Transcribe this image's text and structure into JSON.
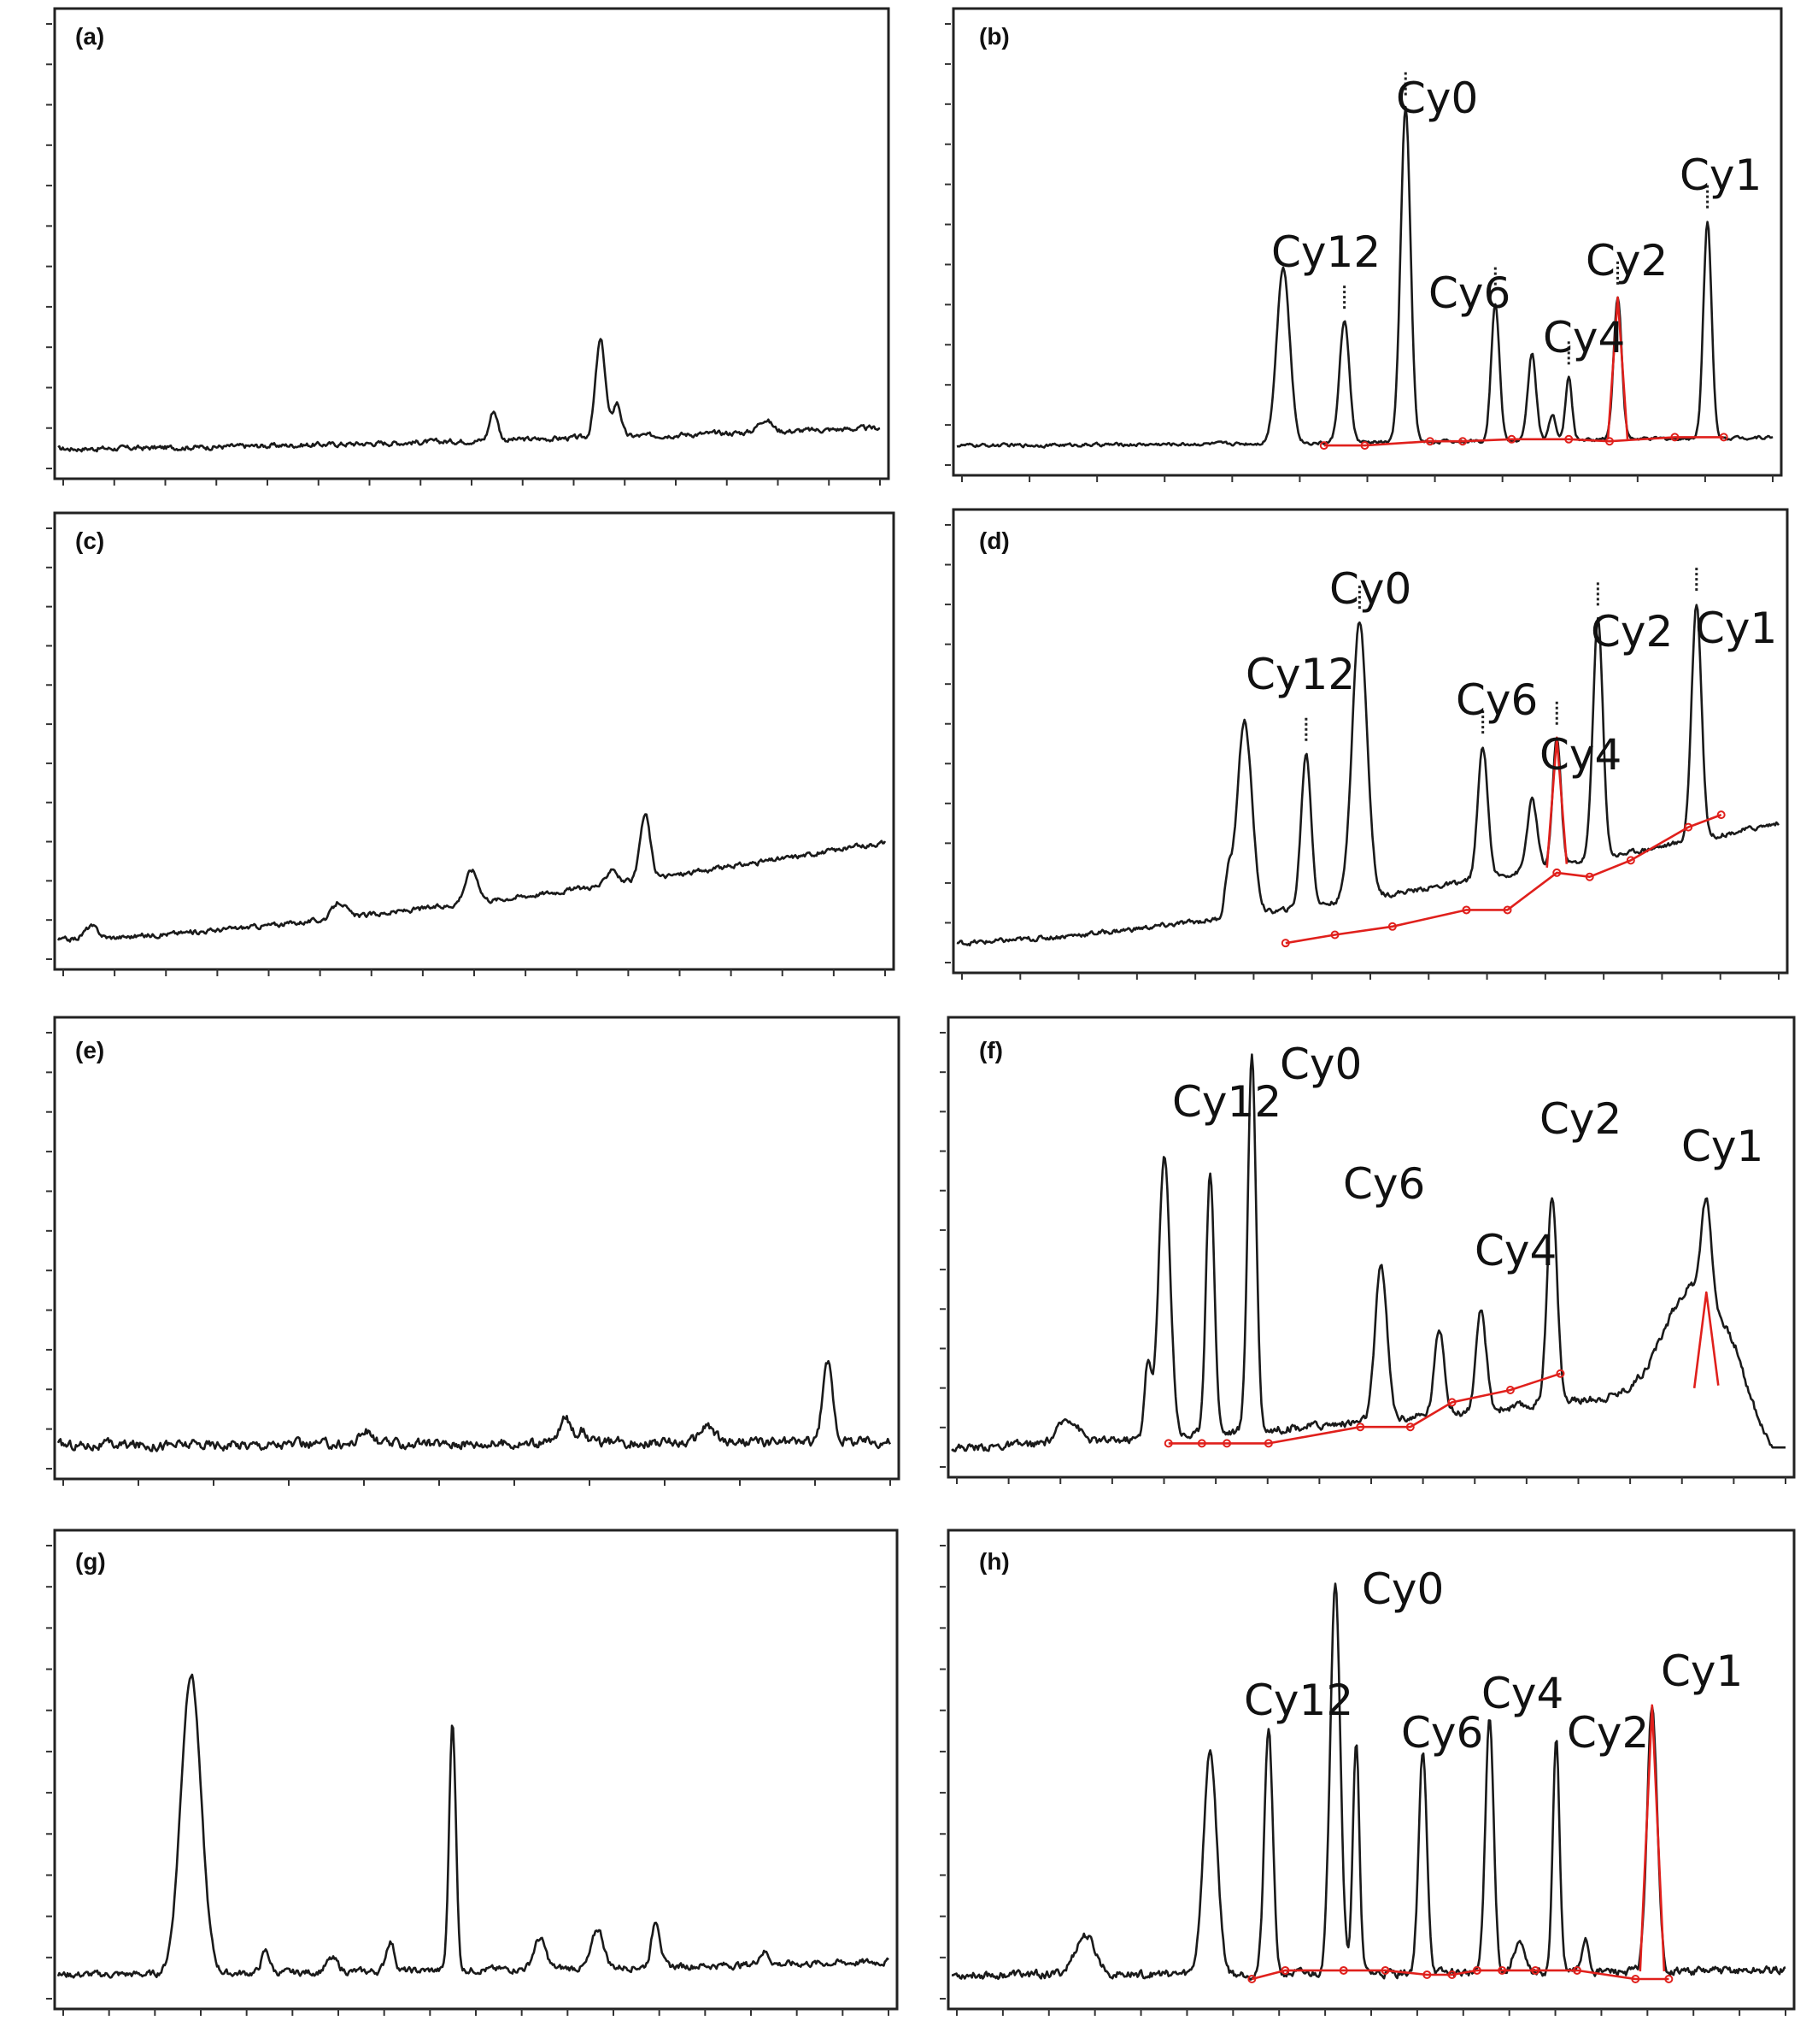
{
  "colors": {
    "trace": "#1a1a1a",
    "integration": "#e0201c",
    "frame": "#222222"
  },
  "chart_data": [
    {
      "panel": "(a)",
      "type": "line",
      "xlim": [
        0,
        100
      ],
      "ylim": [
        0,
        100
      ],
      "x_ticks": 16,
      "y_ticks": 12,
      "grid": false,
      "peaks": [
        {
          "x": 53,
          "h": 7,
          "w": 0.5
        },
        {
          "x": 66,
          "h": 23,
          "w": 0.6
        },
        {
          "x": 68,
          "h": 8,
          "w": 0.5
        },
        {
          "x": 86,
          "h": 3,
          "w": 0.8
        }
      ],
      "baseline_start": 1,
      "baseline_end": 6,
      "noise": 0.6,
      "labels": []
    },
    {
      "panel": "(b)",
      "type": "line",
      "xlim": [
        0,
        100
      ],
      "ylim": [
        0,
        100
      ],
      "x_ticks": 12,
      "y_ticks": 12,
      "grid": false,
      "peaks": [
        {
          "x": 40,
          "h": 42,
          "w": 0.8
        },
        {
          "x": 47.5,
          "h": 29,
          "w": 0.6,
          "label": "Cy12"
        },
        {
          "x": 55,
          "h": 80,
          "w": 0.6,
          "label": "Cy0"
        },
        {
          "x": 66,
          "h": 33,
          "w": 0.5,
          "label": "Cy6"
        },
        {
          "x": 70.5,
          "h": 21,
          "w": 0.5
        },
        {
          "x": 73,
          "h": 6,
          "w": 0.4
        },
        {
          "x": 75,
          "h": 15,
          "w": 0.4,
          "label": "Cy4"
        },
        {
          "x": 81,
          "h": 34,
          "w": 0.5,
          "label": "Cy2",
          "red": true
        },
        {
          "x": 92,
          "h": 52,
          "w": 0.5,
          "label": "Cy1"
        }
      ],
      "baseline_start": 1,
      "baseline_end": 3,
      "noise": 0.4,
      "red_baseline": [
        [
          45,
          1
        ],
        [
          50,
          1
        ],
        [
          58,
          2
        ],
        [
          62,
          2
        ],
        [
          68,
          2.5
        ],
        [
          75,
          2.5
        ],
        [
          80,
          2
        ],
        [
          88,
          3
        ],
        [
          94,
          3
        ]
      ]
    },
    {
      "panel": "(c)",
      "type": "line",
      "xlim": [
        0,
        100
      ],
      "ylim": [
        0,
        100
      ],
      "x_ticks": 16,
      "y_ticks": 12,
      "grid": false,
      "peaks": [
        {
          "x": 4,
          "h": 3,
          "w": 0.8
        },
        {
          "x": 34,
          "h": 4,
          "w": 0.8
        },
        {
          "x": 50,
          "h": 8,
          "w": 0.8
        },
        {
          "x": 67,
          "h": 4,
          "w": 0.6
        },
        {
          "x": 71,
          "h": 16,
          "w": 0.6
        }
      ],
      "baseline_start": 1,
      "baseline_end": 25,
      "noise": 0.6,
      "labels": []
    },
    {
      "panel": "(d)",
      "type": "line",
      "xlim": [
        0,
        100
      ],
      "ylim": [
        0,
        100
      ],
      "x_ticks": 14,
      "y_ticks": 12,
      "grid": false,
      "peaks": [
        {
          "x": 33,
          "h": 9,
          "w": 0.4
        },
        {
          "x": 35,
          "h": 47,
          "w": 0.9
        },
        {
          "x": 42.5,
          "h": 37,
          "w": 0.6,
          "label": "Cy12"
        },
        {
          "x": 49,
          "h": 67,
          "w": 0.9,
          "label": "Cy0"
        },
        {
          "x": 64,
          "h": 32,
          "w": 0.6,
          "label": "Cy6"
        },
        {
          "x": 70,
          "h": 17,
          "w": 0.6
        },
        {
          "x": 73,
          "h": 31,
          "w": 0.5,
          "label": "Cy4",
          "red": true
        },
        {
          "x": 78,
          "h": 58,
          "w": 0.6,
          "label": "Cy2"
        },
        {
          "x": 90,
          "h": 57,
          "w": 0.6,
          "label": "Cy1"
        }
      ],
      "baseline_start": 1,
      "baseline_end": 30,
      "noise": 0.6,
      "red_baseline": [
        [
          40,
          1
        ],
        [
          46,
          3
        ],
        [
          53,
          5
        ],
        [
          62,
          9
        ],
        [
          67,
          9
        ],
        [
          73,
          18
        ],
        [
          77,
          17
        ],
        [
          82,
          21
        ],
        [
          89,
          29
        ],
        [
          93,
          32
        ]
      ]
    },
    {
      "panel": "(e)",
      "type": "line",
      "xlim": [
        0,
        100
      ],
      "ylim": [
        0,
        100
      ],
      "x_ticks": 11,
      "y_ticks": 12,
      "grid": false,
      "peaks": [
        {
          "x": 37,
          "h": 3,
          "w": 0.8
        },
        {
          "x": 61,
          "h": 6,
          "w": 0.7
        },
        {
          "x": 63,
          "h": 3,
          "w": 0.6
        },
        {
          "x": 78,
          "h": 4,
          "w": 0.8
        },
        {
          "x": 92.5,
          "h": 19,
          "w": 0.6
        }
      ],
      "baseline_start": 2,
      "baseline_end": 3,
      "noise": 1.2,
      "labels": []
    },
    {
      "panel": "(f)",
      "type": "line",
      "xlim": [
        0,
        100
      ],
      "ylim": [
        0,
        100
      ],
      "x_ticks": 16,
      "y_ticks": 12,
      "grid": false,
      "peaks": [
        {
          "x": 14,
          "h": 6,
          "w": 1.2
        },
        {
          "x": 23.5,
          "h": 18,
          "w": 0.4
        },
        {
          "x": 25.5,
          "h": 68,
          "w": 0.7
        },
        {
          "x": 31,
          "h": 64,
          "w": 0.5,
          "label": "Cy12"
        },
        {
          "x": 36,
          "h": 92,
          "w": 0.5,
          "label": "Cy0"
        },
        {
          "x": 51.5,
          "h": 38,
          "w": 0.7,
          "label": "Cy6"
        },
        {
          "x": 58.5,
          "h": 21,
          "w": 0.6
        },
        {
          "x": 63.5,
          "h": 24,
          "w": 0.6,
          "label": "Cy4"
        },
        {
          "x": 72,
          "h": 50,
          "w": 0.6,
          "label": "Cy2"
        },
        {
          "x": 89,
          "h": 25,
          "w": 3.5
        },
        {
          "x": 90.5,
          "h": 23,
          "w": 0.6,
          "label": "Cy1",
          "red": true
        }
      ],
      "baseline_start": 1,
      "baseline_end": 18,
      "noise": 1.0,
      "tail_drop": 94,
      "red_baseline": [
        [
          26,
          2
        ],
        [
          30,
          2
        ],
        [
          33,
          2
        ],
        [
          38,
          2
        ],
        [
          49,
          6
        ],
        [
          55,
          6
        ],
        [
          60,
          12
        ],
        [
          67,
          15
        ],
        [
          73,
          19
        ]
      ]
    },
    {
      "panel": "(g)",
      "type": "line",
      "xlim": [
        0,
        100
      ],
      "ylim": [
        0,
        100
      ],
      "x_ticks": 18,
      "y_ticks": 12,
      "grid": false,
      "peaks": [
        {
          "x": 16,
          "h": 70,
          "w": 1.2
        },
        {
          "x": 25,
          "h": 5,
          "w": 0.5
        },
        {
          "x": 33,
          "h": 3,
          "w": 0.7
        },
        {
          "x": 40,
          "h": 7,
          "w": 0.5
        },
        {
          "x": 47.5,
          "h": 58,
          "w": 0.4
        },
        {
          "x": 58,
          "h": 7,
          "w": 0.7
        },
        {
          "x": 65,
          "h": 9,
          "w": 0.7
        },
        {
          "x": 72,
          "h": 11,
          "w": 0.5
        },
        {
          "x": 85,
          "h": 3,
          "w": 0.6
        }
      ],
      "baseline_start": 2,
      "baseline_end": 5,
      "noise": 0.8,
      "labels": []
    },
    {
      "panel": "(h)",
      "type": "line",
      "xlim": [
        0,
        100
      ],
      "ylim": [
        0,
        100
      ],
      "x_ticks": 18,
      "y_ticks": 12,
      "grid": false,
      "peaks": [
        {
          "x": 16,
          "h": 9,
          "w": 1.2
        },
        {
          "x": 31,
          "h": 52,
          "w": 0.8
        },
        {
          "x": 38,
          "h": 57,
          "w": 0.5,
          "label": "Cy12"
        },
        {
          "x": 46,
          "h": 92,
          "w": 0.6,
          "label": "Cy0"
        },
        {
          "x": 48.5,
          "h": 53,
          "w": 0.4
        },
        {
          "x": 56.5,
          "h": 51,
          "w": 0.5,
          "label": "Cy6"
        },
        {
          "x": 64.5,
          "h": 59,
          "w": 0.5,
          "label": "Cy4"
        },
        {
          "x": 68,
          "h": 7,
          "w": 0.6
        },
        {
          "x": 72.5,
          "h": 54,
          "w": 0.4,
          "label": "Cy2"
        },
        {
          "x": 76,
          "h": 8,
          "w": 0.4
        },
        {
          "x": 84,
          "h": 62,
          "w": 0.6,
          "label": "Cy1",
          "red": true
        }
      ],
      "baseline_start": 2,
      "baseline_end": 3,
      "noise": 1.0,
      "red_baseline": [
        [
          36,
          1
        ],
        [
          40,
          3
        ],
        [
          47,
          3
        ],
        [
          52,
          3
        ],
        [
          57,
          2
        ],
        [
          60,
          2
        ],
        [
          63,
          3
        ],
        [
          66,
          3
        ],
        [
          70,
          3
        ],
        [
          75,
          3
        ],
        [
          82,
          1
        ],
        [
          86,
          1
        ]
      ]
    }
  ],
  "panel_labels": [
    "(a)",
    "(b)",
    "(c)",
    "(d)",
    "(e)",
    "(f)",
    "(g)",
    "(h)"
  ],
  "peak_labels": {
    "b": [
      "Cy12",
      "Cy0",
      "Cy6",
      "Cy4",
      "Cy2",
      "Cy1"
    ],
    "d": [
      "Cy12",
      "Cy0",
      "Cy6",
      "Cy4",
      "Cy2",
      "Cy1"
    ],
    "f": [
      "Cy12",
      "Cy0",
      "Cy6",
      "Cy4",
      "Cy2",
      "Cy1"
    ],
    "h": [
      "Cy12",
      "Cy0",
      "Cy6",
      "Cy4",
      "Cy2",
      "Cy1"
    ]
  }
}
